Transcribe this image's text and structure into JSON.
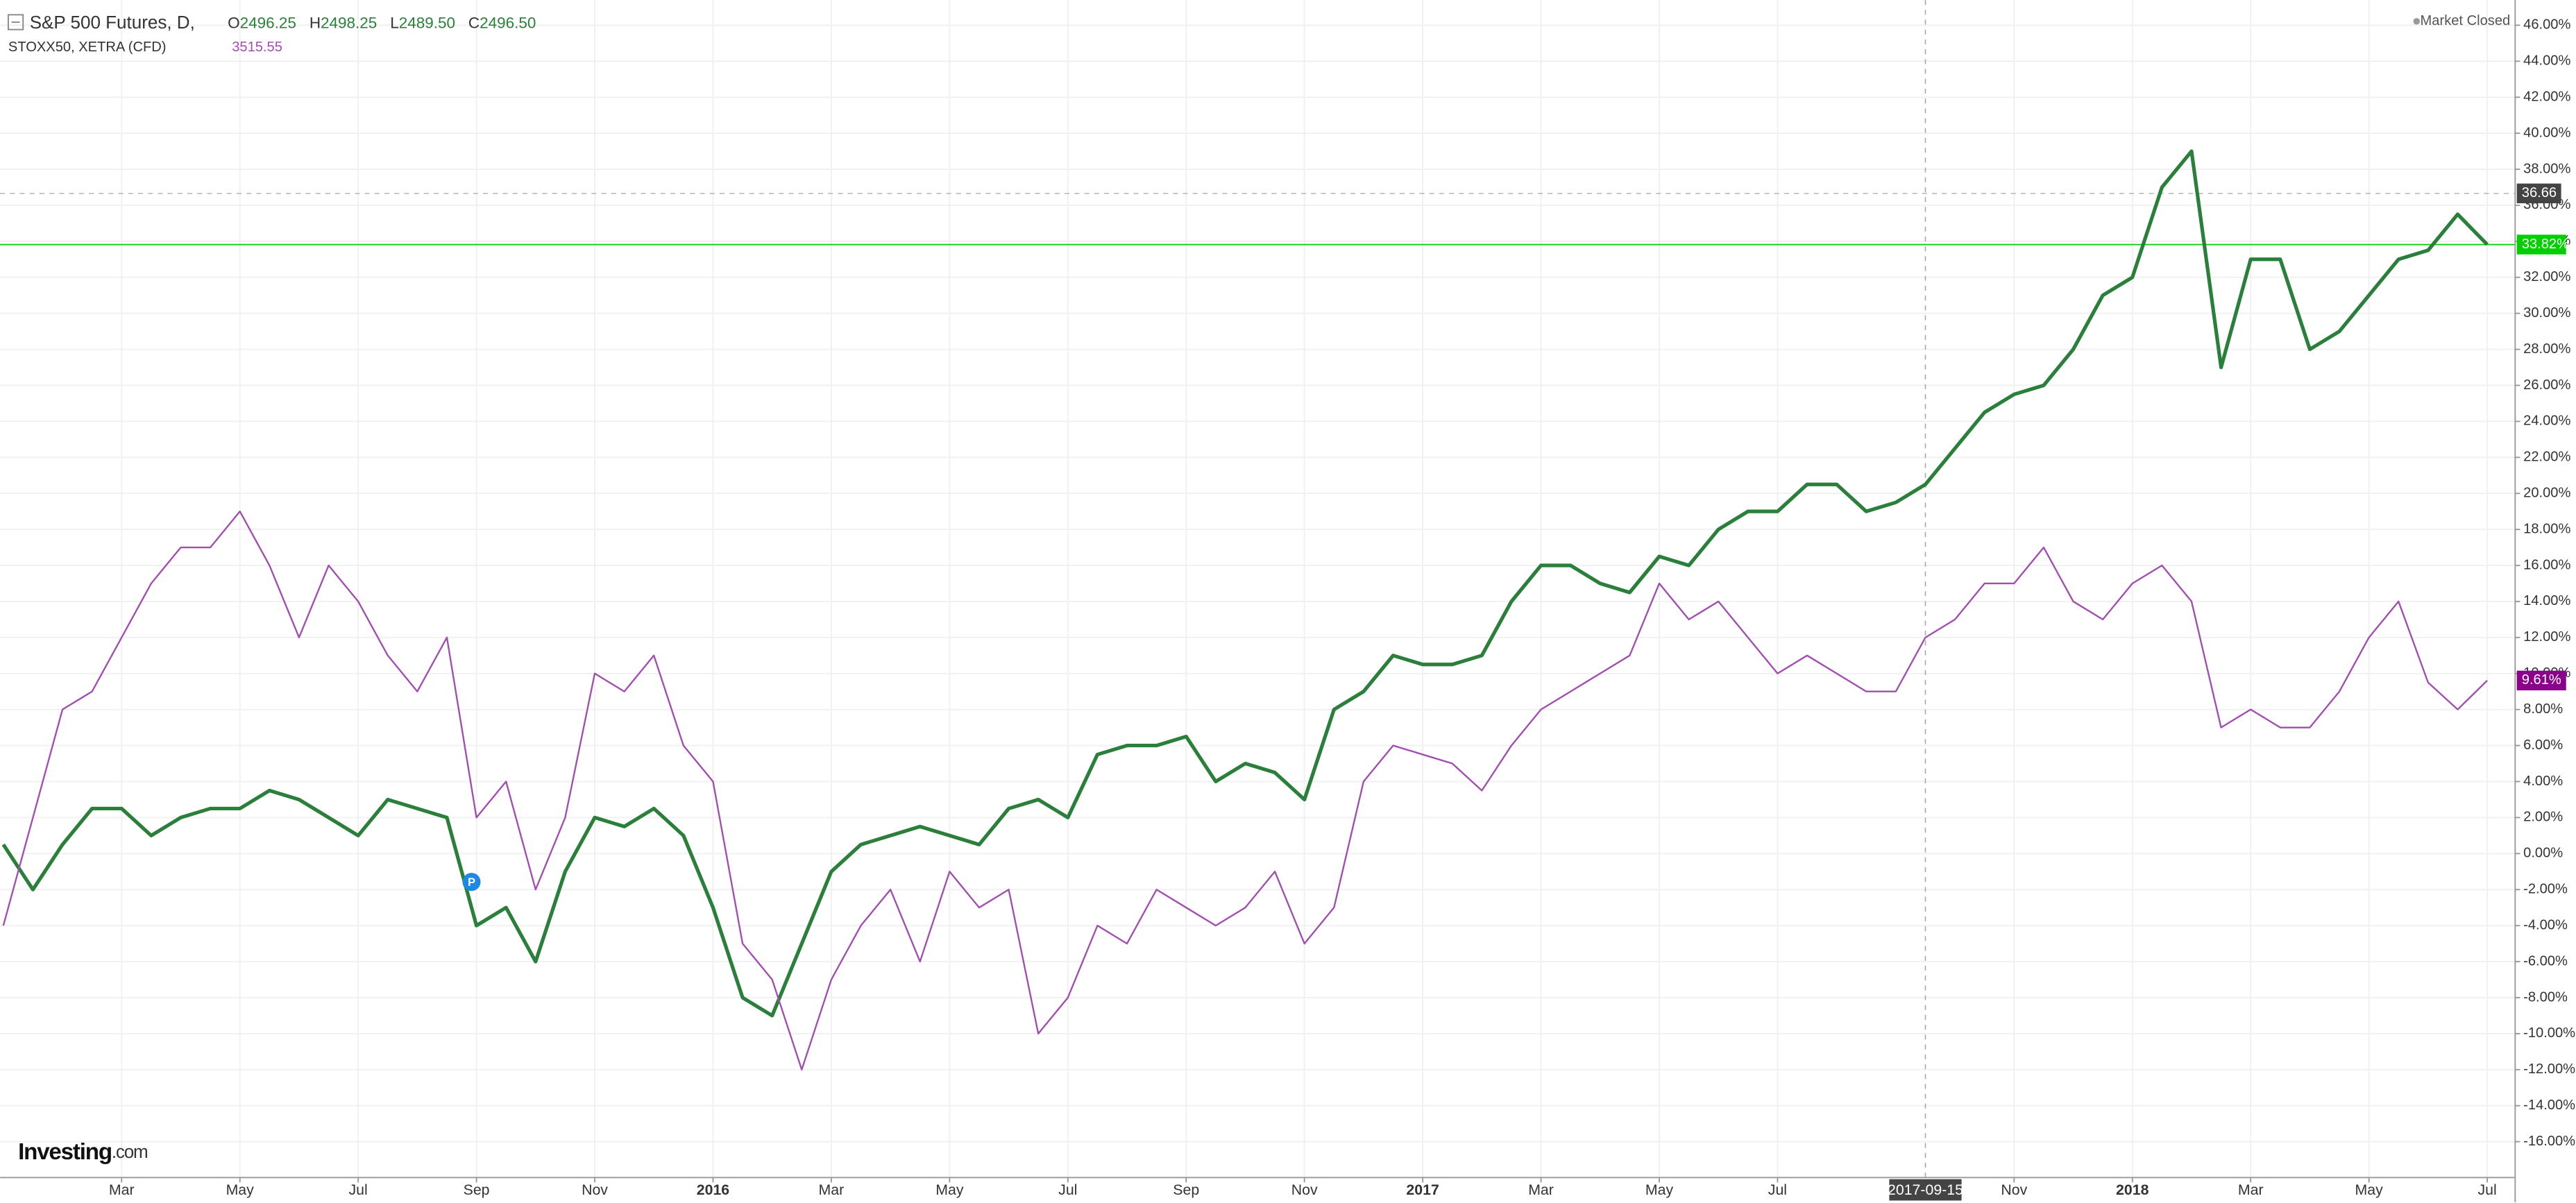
{
  "chart_data": {
    "type": "line",
    "status": "Market Closed",
    "brand": "Investing",
    "brand_suffix": ".com",
    "marker": "P",
    "categories": [
      null,
      null,
      null,
      null,
      "Mar",
      null,
      null,
      null,
      "May",
      null,
      null,
      null,
      "Jul",
      null,
      null,
      null,
      "Sep",
      null,
      null,
      null,
      "Nov",
      null,
      null,
      null,
      "2016",
      null,
      null,
      null,
      "Mar",
      null,
      null,
      null,
      "May",
      null,
      null,
      null,
      "Jul",
      null,
      null,
      null,
      "Sep",
      null,
      null,
      null,
      "Nov",
      null,
      null,
      null,
      "2017",
      null,
      null,
      null,
      "Mar",
      null,
      null,
      null,
      "May",
      null,
      null,
      null,
      "Jul",
      null,
      null,
      null,
      null,
      "2017-09-15",
      null,
      null,
      "Nov",
      null,
      null,
      null,
      "2018",
      null,
      null,
      null,
      "Mar",
      null,
      null,
      null,
      "May",
      null,
      null,
      null,
      "Jul"
    ],
    "series": [
      {
        "name": "S&P 500 Futures, D,",
        "color": "#2a7f3a",
        "last_color": "#00d000",
        "quote": [
          [
            "O",
            "2496.25"
          ],
          [
            "H",
            "2498.25"
          ],
          [
            "L",
            "2489.50"
          ],
          [
            "C",
            "2496.50"
          ]
        ],
        "last_value_label": "33.82%",
        "values": [
          0.5,
          -2,
          0.5,
          2.5,
          2.5,
          1,
          2,
          2.5,
          2.5,
          3.5,
          3,
          2,
          1,
          3,
          2.5,
          2,
          -4,
          -3,
          -6,
          -1,
          2,
          1.5,
          2.5,
          1,
          -3,
          -8,
          -9,
          -5,
          -1,
          0.5,
          1,
          1.5,
          1,
          0.5,
          2.5,
          3,
          2,
          5.5,
          6,
          6,
          6.5,
          4,
          5,
          4.5,
          3,
          8,
          9,
          11,
          10.5,
          10.5,
          11,
          14,
          16,
          16,
          15,
          14.5,
          16.5,
          16,
          18,
          19,
          19,
          20.5,
          20.5,
          19,
          19.5,
          20.5,
          22.5,
          24.5,
          25.5,
          26,
          28,
          31,
          32,
          37,
          39,
          27,
          33,
          33,
          28,
          29,
          31,
          33,
          33.5,
          35.5,
          33.82
        ]
      },
      {
        "name": "STOXX50, XETRA (CFD)",
        "color": "#a24eb0",
        "last_color": "#8b008b",
        "last": "3515.55",
        "last_value_label": "9.61%",
        "values": [
          -4,
          2,
          8,
          9,
          12,
          15,
          17,
          17,
          19,
          16,
          12,
          16,
          14,
          11,
          9,
          12,
          2,
          4,
          -2,
          2,
          10,
          9,
          11,
          6,
          4,
          -5,
          -7,
          -12,
          -7,
          -4,
          -2,
          -6,
          -1,
          -3,
          -2,
          -10,
          -8,
          -4,
          -5,
          -2,
          -3,
          -4,
          -3,
          -1,
          -5,
          -3,
          4,
          6,
          5.5,
          5,
          3.5,
          6,
          8,
          9,
          10,
          11,
          15,
          13,
          14,
          12,
          10,
          11,
          10,
          9,
          9,
          12,
          13,
          15,
          15,
          17,
          14,
          13,
          15,
          16,
          14,
          7,
          8,
          7,
          7,
          9,
          12,
          14,
          9.5,
          8,
          9.61
        ]
      }
    ],
    "crosshair_y": 36.66,
    "ylim": [
      -17.9,
      47.4
    ],
    "yticks": [
      {
        "value": -16,
        "label": "-16.00%"
      },
      {
        "value": -14,
        "label": "-14.00%"
      },
      {
        "value": -12,
        "label": "-12.00%"
      },
      {
        "value": -10,
        "label": "-10.00%"
      },
      {
        "value": -8,
        "label": "-8.00%"
      },
      {
        "value": -6,
        "label": "-6.00%"
      },
      {
        "value": -4,
        "label": "-4.00%"
      },
      {
        "value": -2,
        "label": "-2.00%"
      },
      {
        "value": 0,
        "label": "0.00%"
      },
      {
        "value": 2,
        "label": "2.00%"
      },
      {
        "value": 4,
        "label": "4.00%"
      },
      {
        "value": 6,
        "label": "6.00%"
      },
      {
        "value": 8,
        "label": "8.00%"
      },
      {
        "value": 10,
        "label": "10.00%"
      },
      {
        "value": 12,
        "label": "12.00%"
      },
      {
        "value": 14,
        "label": "14.00%"
      },
      {
        "value": 16,
        "label": "16.00%"
      },
      {
        "value": 18,
        "label": "18.00%"
      },
      {
        "value": 20,
        "label": "20.00%"
      },
      {
        "value": 22,
        "label": "22.00%"
      },
      {
        "value": 24,
        "label": "24.00%"
      },
      {
        "value": 26,
        "label": "26.00%"
      },
      {
        "value": 28,
        "label": "28.00%"
      },
      {
        "value": 30,
        "label": "30.00%"
      },
      {
        "value": 32,
        "label": "32.00%"
      },
      {
        "value": 34,
        "label": "34.00%"
      },
      {
        "value": 36,
        "label": "36.00%"
      },
      {
        "value": 38,
        "label": "38.00%"
      },
      {
        "value": 40,
        "label": "40.00%"
      },
      {
        "value": 42,
        "label": "42.00%"
      },
      {
        "value": 44,
        "label": "44.00%"
      },
      {
        "value": 46,
        "label": "46.00%"
      }
    ],
    "grid": true
  }
}
